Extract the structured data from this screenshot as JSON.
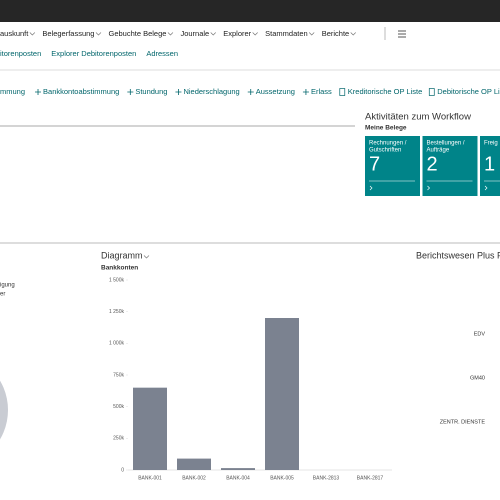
{
  "nav": {
    "items": [
      "auskunft",
      "Belegerfassung",
      "Gebuchte Belege",
      "Journale",
      "Explorer",
      "Stammdaten",
      "Berichte"
    ]
  },
  "subnav": {
    "links": [
      "itorenposten",
      "Explorer Debitorenposten",
      "Adressen"
    ]
  },
  "actions": {
    "first": "mmung",
    "plus": [
      "Bankkontoabstimmung",
      "Stundung",
      "Niederschlagung",
      "Aussetzung",
      "Erlass"
    ],
    "reports": [
      "Kreditorische OP Liste",
      "Debitorische OP Liste"
    ]
  },
  "workflow": {
    "title": "Aktivitäten zum Workflow",
    "group": "Meine Belege",
    "tiles": [
      {
        "label": [
          "Rechnungen /",
          "Gutschriften"
        ],
        "count": "7"
      },
      {
        "label": [
          "Bestellungen /",
          "Aufträge"
        ],
        "count": "2"
      },
      {
        "label": [
          "Freig"
        ],
        "count": "1"
      }
    ]
  },
  "left_panel": {
    "lines": [
      "igung",
      "er"
    ]
  },
  "report_panel": {
    "title": "Berichtswesen Plus Fi",
    "labels": [
      "EDV",
      "GM40",
      "ZENTR. DIENSTE"
    ]
  },
  "chart_data": {
    "type": "bar",
    "title": "Diagramm",
    "subtitle": "Bankkonten",
    "categories": [
      "BANK-001",
      "BANK-002",
      "BANK-004",
      "BANK-005",
      "BANK-2813",
      "BANK-2817"
    ],
    "values": [
      650000,
      90000,
      15000,
      1200000,
      0,
      0
    ],
    "color": "#7b8290",
    "ylim": [
      0,
      1500000
    ],
    "yticks": [
      0,
      {
        "value": 250000,
        "label": "250k"
      },
      {
        "value": 500000,
        "label": "500k"
      },
      {
        "value": 750000,
        "label": "750k"
      },
      {
        "value": 1000000,
        "label": "1 000k"
      },
      {
        "value": 1250000,
        "label": "1 250k"
      },
      {
        "value": 1500000,
        "label": "1 500k"
      }
    ]
  }
}
